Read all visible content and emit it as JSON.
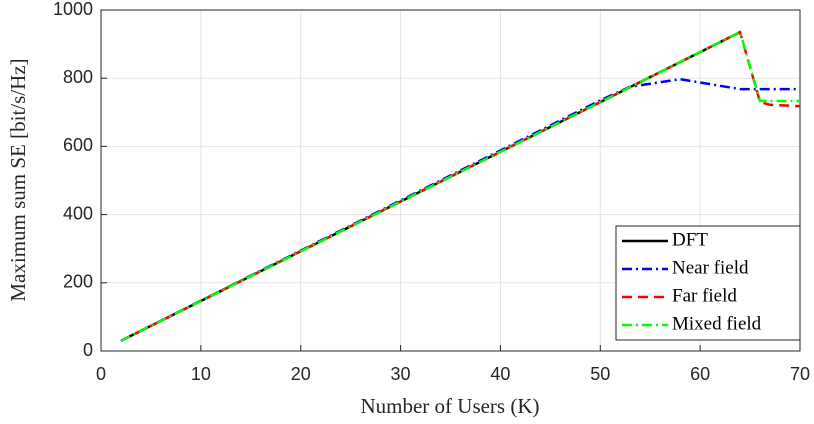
{
  "chart_data": {
    "type": "line",
    "x_label": "Number of Users (K)",
    "y_label": "Maximum sum SE [bit/s/Hz]",
    "x": [
      2,
      50,
      53,
      58,
      64,
      66,
      67,
      70
    ],
    "series": [
      {
        "name": "DFT",
        "color": "#000000",
        "dash": "-",
        "values": [
          30,
          730,
          774,
          847,
          935,
          null,
          null,
          null
        ]
      },
      {
        "name": "Near field",
        "color": "#0000ff",
        "dash": "-.",
        "values": [
          30,
          735,
          775,
          797,
          768,
          768,
          768,
          768
        ]
      },
      {
        "name": "Far field",
        "color": "#ff0000",
        "dash": "--",
        "values": [
          30,
          730,
          774,
          847,
          935,
          730,
          722,
          718
        ]
      },
      {
        "name": "Mixed field",
        "color": "#00ff00",
        "dash": "-.",
        "values": [
          30,
          730,
          774,
          847,
          935,
          733,
          733,
          733
        ]
      }
    ],
    "xlim": [
      0,
      70
    ],
    "xticks": [
      0,
      10,
      20,
      30,
      40,
      50,
      60,
      70
    ],
    "ylim": [
      0,
      1000
    ],
    "yticks": [
      0,
      200,
      400,
      600,
      800,
      1000
    ],
    "grid": true,
    "legend": "lower right"
  }
}
